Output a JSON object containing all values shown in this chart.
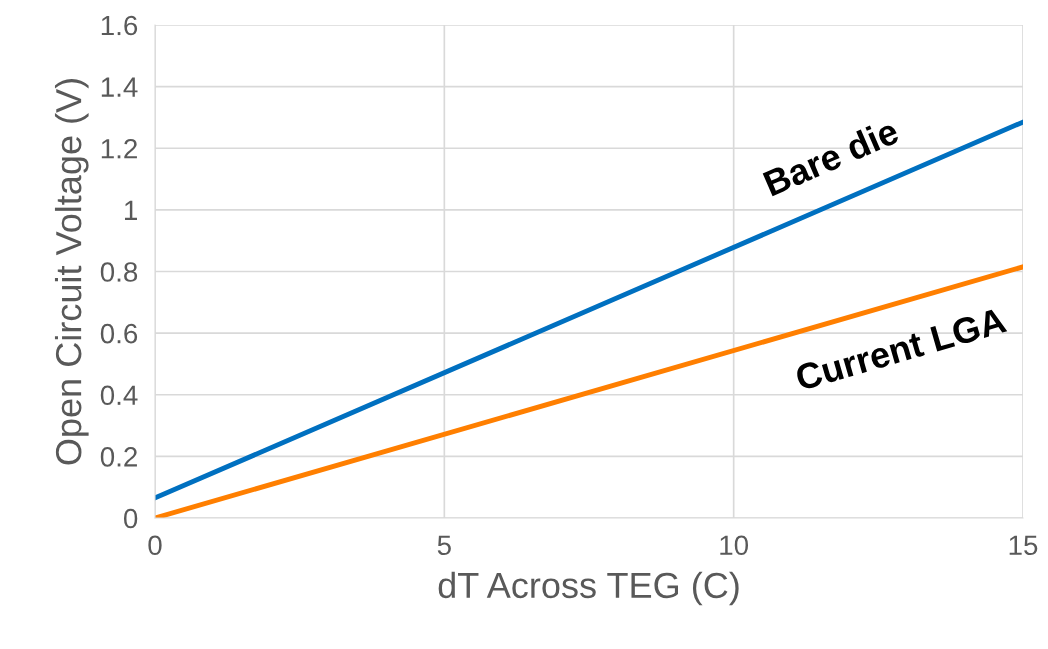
{
  "chart_data": {
    "type": "line",
    "xlabel": "dT Across TEG (C)",
    "ylabel": "Open Circuit Voltage (V)",
    "x": [
      0,
      15
    ],
    "series": [
      {
        "name": "Bare die",
        "color": "#0070c0",
        "values": [
          0.065,
          1.285
        ]
      },
      {
        "name": "Current LGA",
        "color": "#ff7f00",
        "values": [
          0,
          0.815
        ]
      }
    ],
    "xlim": [
      0,
      15
    ],
    "ylim": [
      0,
      1.6
    ],
    "xticks": [
      0,
      5,
      10,
      15
    ],
    "yticks": [
      0,
      0.2,
      0.4,
      0.6,
      0.8,
      1,
      1.2,
      1.4,
      1.6
    ],
    "grid": true,
    "marker": "none",
    "line_style": "solid",
    "legend": false
  }
}
